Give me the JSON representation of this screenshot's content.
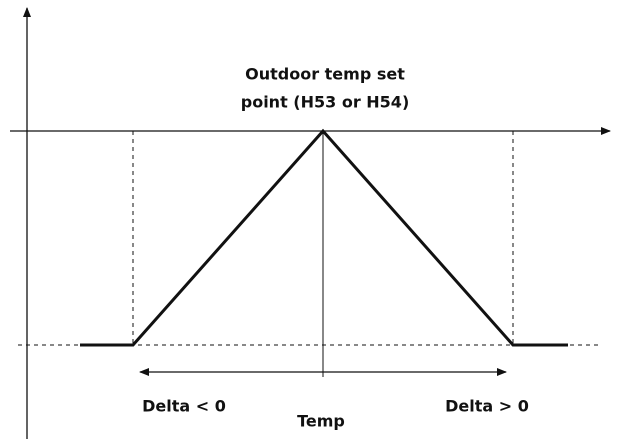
{
  "setpoint_label": [
    "Outdoor temp set",
    "point (H53 or H54)"
  ],
  "left_label": "Delta < 0",
  "right_label": "Delta > 0",
  "axis_label": "Temp"
}
